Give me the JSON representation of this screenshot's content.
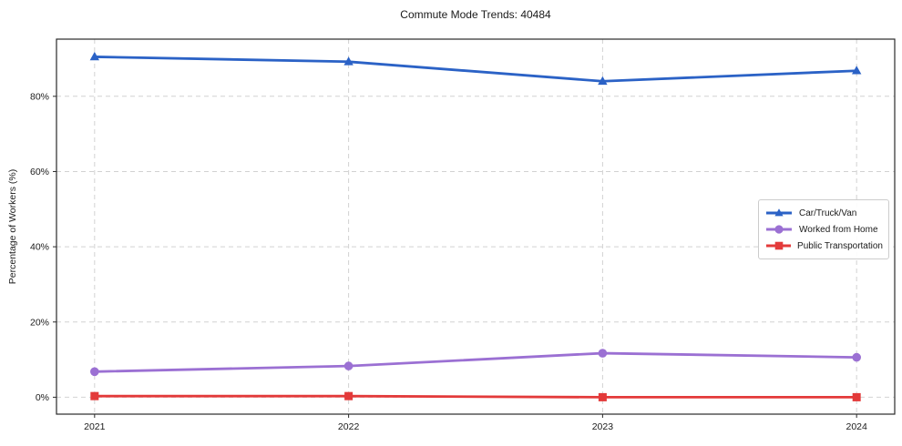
{
  "title": "Commute Mode Trends: 40484",
  "ylabel": "Percentage of Workers (%)",
  "chart_data": {
    "type": "line",
    "title": "Commute Mode Trends: 40484",
    "xlabel": "",
    "ylabel": "Percentage of Workers (%)",
    "x": [
      2021,
      2022,
      2023,
      2024
    ],
    "categories": [
      "2021",
      "2022",
      "2023",
      "2024"
    ],
    "series": [
      {
        "name": "Car/Truck/Van",
        "values": [
          90.5,
          89.2,
          84.0,
          86.8
        ],
        "color": "#2b62c6",
        "marker": "triangle"
      },
      {
        "name": "Worked from Home",
        "values": [
          6.8,
          8.3,
          11.7,
          10.6
        ],
        "color": "#9b70d3",
        "marker": "circle"
      },
      {
        "name": "Public Transportation",
        "values": [
          0.3,
          0.3,
          0.0,
          0.0
        ],
        "color": "#e33a3a",
        "marker": "square"
      }
    ],
    "yticks": [
      0,
      20,
      40,
      60,
      80
    ],
    "ytick_labels": [
      "0%",
      "20%",
      "40%",
      "60%",
      "80%"
    ],
    "ylim": [
      -4.5,
      95.2
    ],
    "xlim": [
      2020.85,
      2024.15
    ],
    "grid": true,
    "grid_style": "dashed",
    "legend_position": "center right"
  },
  "colors": {
    "grid": "#d2d2d2",
    "spine": "#2a2a2a",
    "text": "#1a1a1a",
    "background": "#ffffff",
    "legend_border": "#cccccc"
  }
}
